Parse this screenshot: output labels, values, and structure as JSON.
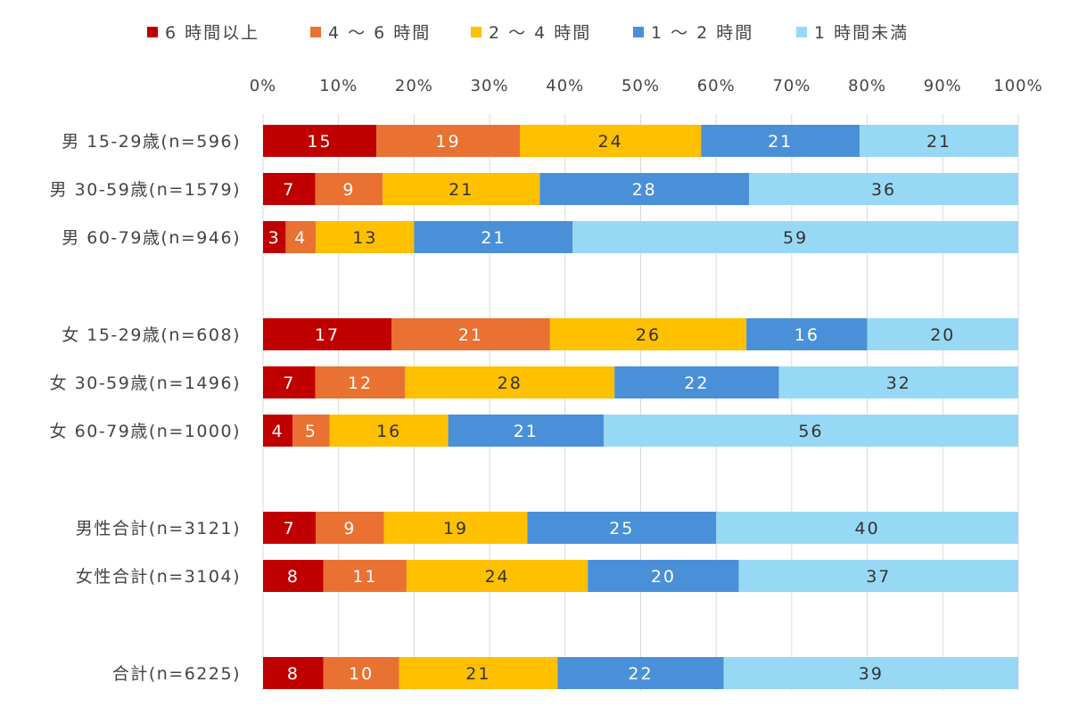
{
  "chart_data": {
    "type": "bar",
    "orientation": "horizontal",
    "stacked": "percent",
    "legend_position": "top",
    "grid": true,
    "xlim": [
      0,
      100
    ],
    "x_ticks": [
      "0%",
      "10%",
      "20%",
      "30%",
      "40%",
      "50%",
      "60%",
      "70%",
      "80%",
      "90%",
      "100%"
    ],
    "categories": [
      "男 15-29歳(n=596)",
      "男 30-59歳(n=1579)",
      "男 60-79歳(n=946)",
      "女 15-29歳(n=608)",
      "女 30-59歳(n=1496)",
      "女 60-79歳(n=1000)",
      "男性合計(n=3121)",
      "女性合計(n=3104)",
      "合計(n=6225)"
    ],
    "series": [
      {
        "name": "6 時間以上",
        "color": "#C00000",
        "label_color": "#ffffff",
        "values": [
          15,
          7,
          3,
          17,
          7,
          4,
          7,
          8,
          8
        ]
      },
      {
        "name": "4 〜 6 時間",
        "color": "#E97132",
        "label_color": "#ffffff",
        "values": [
          19,
          9,
          4,
          21,
          12,
          5,
          9,
          11,
          10
        ]
      },
      {
        "name": "2 〜 4 時間",
        "color": "#FFC000",
        "label_color": "#333333",
        "values": [
          24,
          21,
          13,
          26,
          28,
          16,
          19,
          24,
          21
        ]
      },
      {
        "name": "1 〜 2 時間",
        "color": "#4A90D9",
        "label_color": "#ffffff",
        "values": [
          21,
          28,
          21,
          16,
          22,
          21,
          25,
          20,
          22
        ]
      },
      {
        "name": "1 時間未満",
        "color": "#97D9F5",
        "label_color": "#333333",
        "values": [
          21,
          36,
          59,
          20,
          32,
          56,
          40,
          37,
          39
        ]
      }
    ]
  }
}
